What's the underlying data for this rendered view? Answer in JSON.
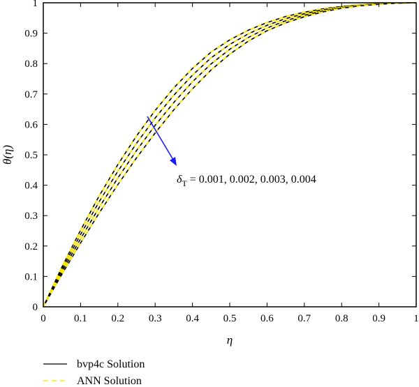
{
  "chart_data": {
    "type": "line",
    "xlabel": "η",
    "ylabel": "θ(η)",
    "xlim": [
      0,
      1
    ],
    "ylim": [
      0,
      1
    ],
    "xticks": [
      "0",
      "0.1",
      "0.2",
      "0.3",
      "0.4",
      "0.5",
      "0.6",
      "0.7",
      "0.8",
      "0.9",
      "1"
    ],
    "yticks": [
      "0",
      "0.1",
      "0.2",
      "0.3",
      "0.4",
      "0.5",
      "0.6",
      "0.7",
      "0.8",
      "0.9",
      "1"
    ],
    "grid": false,
    "legend": [
      {
        "label": "bvp4c Solution",
        "color": "#000000",
        "style": "solid"
      },
      {
        "label": "ANN Solution",
        "color": "#ffee00",
        "style": "dashed"
      }
    ],
    "legend_placement": "bottom-left",
    "annotation": {
      "symbol": "δ",
      "subscript": "T",
      "text": " = 0.001, 0.002, 0.003, 0.004",
      "arrow_color": "#1a1aff"
    },
    "x": [
      0,
      0.05,
      0.1,
      0.15,
      0.2,
      0.25,
      0.3,
      0.35,
      0.4,
      0.45,
      0.5,
      0.55,
      0.6,
      0.65,
      0.7,
      0.75,
      0.8,
      0.85,
      0.9,
      0.95,
      1
    ],
    "series": [
      {
        "values": [
          0,
          0.131,
          0.252,
          0.365,
          0.468,
          0.562,
          0.646,
          0.72,
          0.784,
          0.838,
          0.878,
          0.91,
          0.935,
          0.955,
          0.969,
          0.98,
          0.988,
          0.993,
          0.997,
          0.999,
          1
        ]
      },
      {
        "values": [
          0,
          0.123,
          0.238,
          0.346,
          0.446,
          0.538,
          0.621,
          0.696,
          0.762,
          0.819,
          0.863,
          0.898,
          0.926,
          0.948,
          0.964,
          0.977,
          0.986,
          0.992,
          0.996,
          0.999,
          1
        ]
      },
      {
        "values": [
          0,
          0.115,
          0.224,
          0.327,
          0.424,
          0.514,
          0.597,
          0.672,
          0.74,
          0.799,
          0.847,
          0.886,
          0.917,
          0.941,
          0.959,
          0.973,
          0.984,
          0.991,
          0.996,
          0.999,
          1
        ]
      },
      {
        "values": [
          0,
          0.107,
          0.21,
          0.309,
          0.402,
          0.49,
          0.572,
          0.648,
          0.717,
          0.779,
          0.831,
          0.874,
          0.908,
          0.934,
          0.954,
          0.97,
          0.982,
          0.99,
          0.995,
          0.999,
          1
        ]
      }
    ]
  }
}
